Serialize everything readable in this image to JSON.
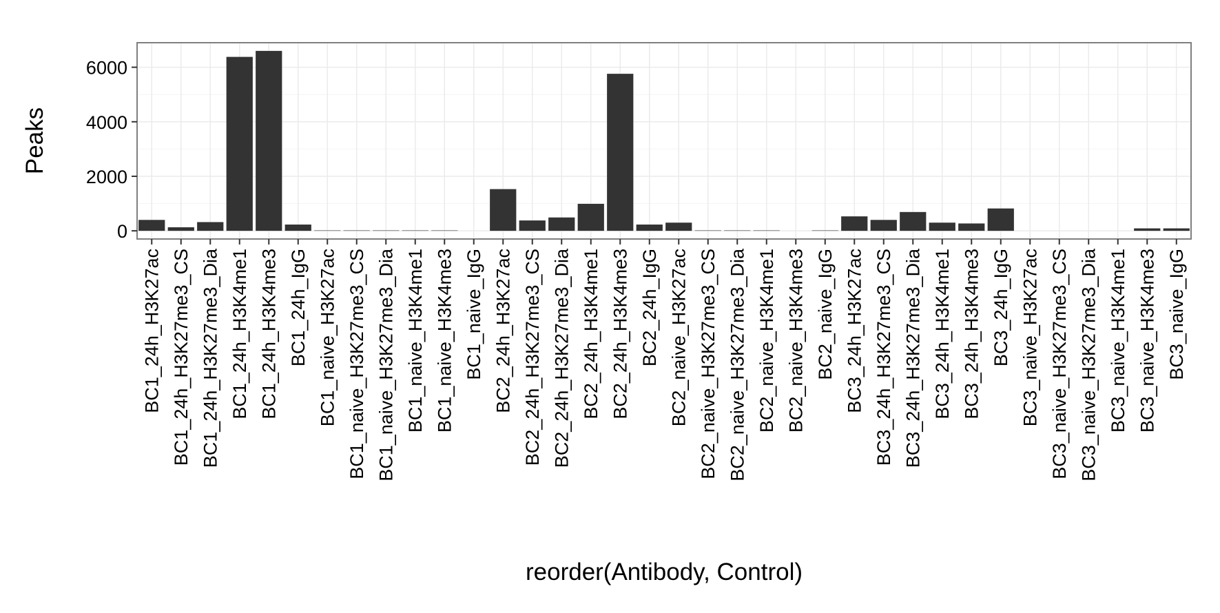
{
  "chart_data": {
    "type": "bar",
    "title": "",
    "xlabel": "reorder(Antibody, Control)",
    "ylabel": "Peaks",
    "ylim": [
      -300,
      6900
    ],
    "yticks": [
      0,
      2000,
      4000,
      6000
    ],
    "ytick_labels": [
      "0",
      "2000",
      "4000",
      "6000"
    ],
    "grid": true,
    "legend": "none",
    "colors": {
      "bar": "#333333",
      "panel_background": "#ffffff",
      "grid_major": "#ebebeb",
      "grid_minor": "#f5f5f5",
      "panel_border": "#7f7f7f",
      "ticks": "#333333"
    },
    "categories": [
      "BC1_24h_H3K27ac",
      "BC1_24h_H3K27me3_CS",
      "BC1_24h_H3K27me3_Dia",
      "BC1_24h_H3K4me1",
      "BC1_24h_H3K4me3",
      "BC1_24h_IgG",
      "BC1_naive_H3K27ac",
      "BC1_naive_H3K27me3_CS",
      "BC1_naive_H3K27me3_Dia",
      "BC1_naive_H3K4me1",
      "BC1_naive_H3K4me3",
      "BC1_naive_IgG",
      "BC2_24h_H3K27ac",
      "BC2_24h_H3K27me3_CS",
      "BC2_24h_H3K27me3_Dia",
      "BC2_24h_H3K4me1",
      "BC2_24h_H3K4me3",
      "BC2_24h_IgG",
      "BC2_naive_H3K27ac",
      "BC2_naive_H3K27me3_CS",
      "BC2_naive_H3K27me3_Dia",
      "BC2_naive_H3K4me1",
      "BC2_naive_H3K4me3",
      "BC2_naive_IgG",
      "BC3_24h_H3K27ac",
      "BC3_24h_H3K27me3_CS",
      "BC3_24h_H3K27me3_Dia",
      "BC3_24h_H3K4me1",
      "BC3_24h_H3K4me3",
      "BC3_24h_IgG",
      "BC3_naive_H3K27ac",
      "BC3_naive_H3K27me3_CS",
      "BC3_naive_H3K27me3_Dia",
      "BC3_naive_H3K4me1",
      "BC3_naive_H3K4me3",
      "BC3_naive_IgG"
    ],
    "values": [
      400,
      130,
      320,
      6380,
      6600,
      230,
      15,
      15,
      15,
      15,
      15,
      0,
      1530,
      380,
      490,
      990,
      5760,
      230,
      300,
      15,
      15,
      15,
      0,
      15,
      530,
      400,
      690,
      300,
      270,
      820,
      0,
      0,
      0,
      0,
      90,
      90
    ]
  }
}
